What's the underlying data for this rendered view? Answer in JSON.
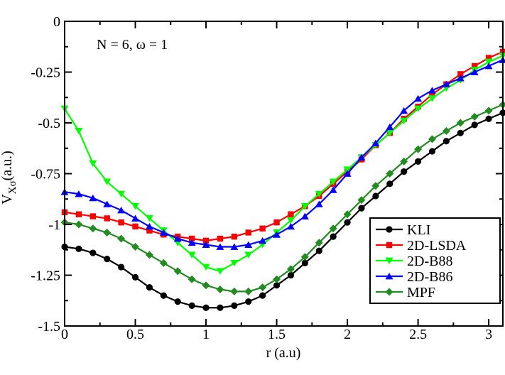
{
  "chart_data": {
    "type": "line",
    "annotation": "N = 6, ω = 1",
    "xlabel": "r (a.u)",
    "ylabel_main": "V",
    "ylabel_sub": "Xσ",
    "ylabel_rest": "(a.u.)",
    "xlim": [
      0,
      3.1
    ],
    "ylim": [
      -1.5,
      0
    ],
    "xticks": [
      0,
      0.5,
      1,
      1.5,
      2,
      2.5,
      3
    ],
    "xtick_labels": [
      "0",
      "0.5",
      "1",
      "1.5",
      "2",
      "2.5",
      "3"
    ],
    "yticks": [
      0,
      -0.25,
      -0.5,
      -0.75,
      -1,
      -1.25,
      -1.5
    ],
    "ytick_labels": [
      "0",
      "-0.25",
      "-0.5",
      "-0.75",
      "-1",
      "-1.25",
      "-1.5"
    ],
    "legend_position": "bottom-right",
    "x": [
      0,
      0.1,
      0.2,
      0.3,
      0.4,
      0.5,
      0.6,
      0.7,
      0.8,
      0.9,
      1.0,
      1.1,
      1.2,
      1.3,
      1.4,
      1.5,
      1.6,
      1.7,
      1.8,
      1.9,
      2.0,
      2.1,
      2.2,
      2.3,
      2.4,
      2.5,
      2.6,
      2.7,
      2.8,
      2.9,
      3.0,
      3.1
    ],
    "series": [
      {
        "name": "KLI",
        "color": "#000000",
        "marker": "circle",
        "values": [
          -1.11,
          -1.12,
          -1.14,
          -1.17,
          -1.21,
          -1.26,
          -1.31,
          -1.35,
          -1.38,
          -1.4,
          -1.41,
          -1.41,
          -1.4,
          -1.38,
          -1.35,
          -1.3,
          -1.25,
          -1.19,
          -1.13,
          -1.06,
          -0.99,
          -0.92,
          -0.86,
          -0.8,
          -0.74,
          -0.69,
          -0.64,
          -0.59,
          -0.55,
          -0.51,
          -0.48,
          -0.45
        ]
      },
      {
        "name": "2D-LSDA",
        "color": "#ff0000",
        "marker": "square",
        "values": [
          -0.94,
          -0.95,
          -0.96,
          -0.97,
          -0.99,
          -1.01,
          -1.03,
          -1.05,
          -1.06,
          -1.07,
          -1.08,
          -1.07,
          -1.06,
          -1.04,
          -1.02,
          -0.99,
          -0.95,
          -0.91,
          -0.86,
          -0.8,
          -0.74,
          -0.68,
          -0.61,
          -0.55,
          -0.48,
          -0.42,
          -0.36,
          -0.31,
          -0.26,
          -0.22,
          -0.18,
          -0.15
        ]
      },
      {
        "name": "2D-B88",
        "color": "#00ff00",
        "marker": "triangle-down",
        "values": [
          -0.43,
          -0.54,
          -0.7,
          -0.79,
          -0.85,
          -0.91,
          -0.97,
          -1.03,
          -1.09,
          -1.15,
          -1.21,
          -1.23,
          -1.19,
          -1.15,
          -1.1,
          -1.04,
          -0.98,
          -0.91,
          -0.85,
          -0.79,
          -0.73,
          -0.67,
          -0.61,
          -0.55,
          -0.49,
          -0.43,
          -0.38,
          -0.33,
          -0.29,
          -0.24,
          -0.2,
          -0.17
        ]
      },
      {
        "name": "2D-B86",
        "color": "#0000ff",
        "marker": "triangle-up",
        "values": [
          -0.84,
          -0.85,
          -0.87,
          -0.9,
          -0.93,
          -0.97,
          -1.01,
          -1.04,
          -1.07,
          -1.09,
          -1.1,
          -1.11,
          -1.11,
          -1.1,
          -1.08,
          -1.05,
          -1.01,
          -0.96,
          -0.9,
          -0.83,
          -0.75,
          -0.67,
          -0.6,
          -0.52,
          -0.44,
          -0.38,
          -0.34,
          -0.31,
          -0.28,
          -0.25,
          -0.22,
          -0.19
        ]
      },
      {
        "name": "MPF",
        "color": "#228b22",
        "marker": "diamond",
        "values": [
          -0.99,
          -1.0,
          -1.02,
          -1.04,
          -1.07,
          -1.11,
          -1.15,
          -1.19,
          -1.23,
          -1.27,
          -1.3,
          -1.32,
          -1.33,
          -1.33,
          -1.31,
          -1.27,
          -1.22,
          -1.16,
          -1.09,
          -1.02,
          -0.95,
          -0.88,
          -0.81,
          -0.75,
          -0.69,
          -0.63,
          -0.58,
          -0.54,
          -0.5,
          -0.47,
          -0.44,
          -0.41
        ]
      }
    ]
  }
}
